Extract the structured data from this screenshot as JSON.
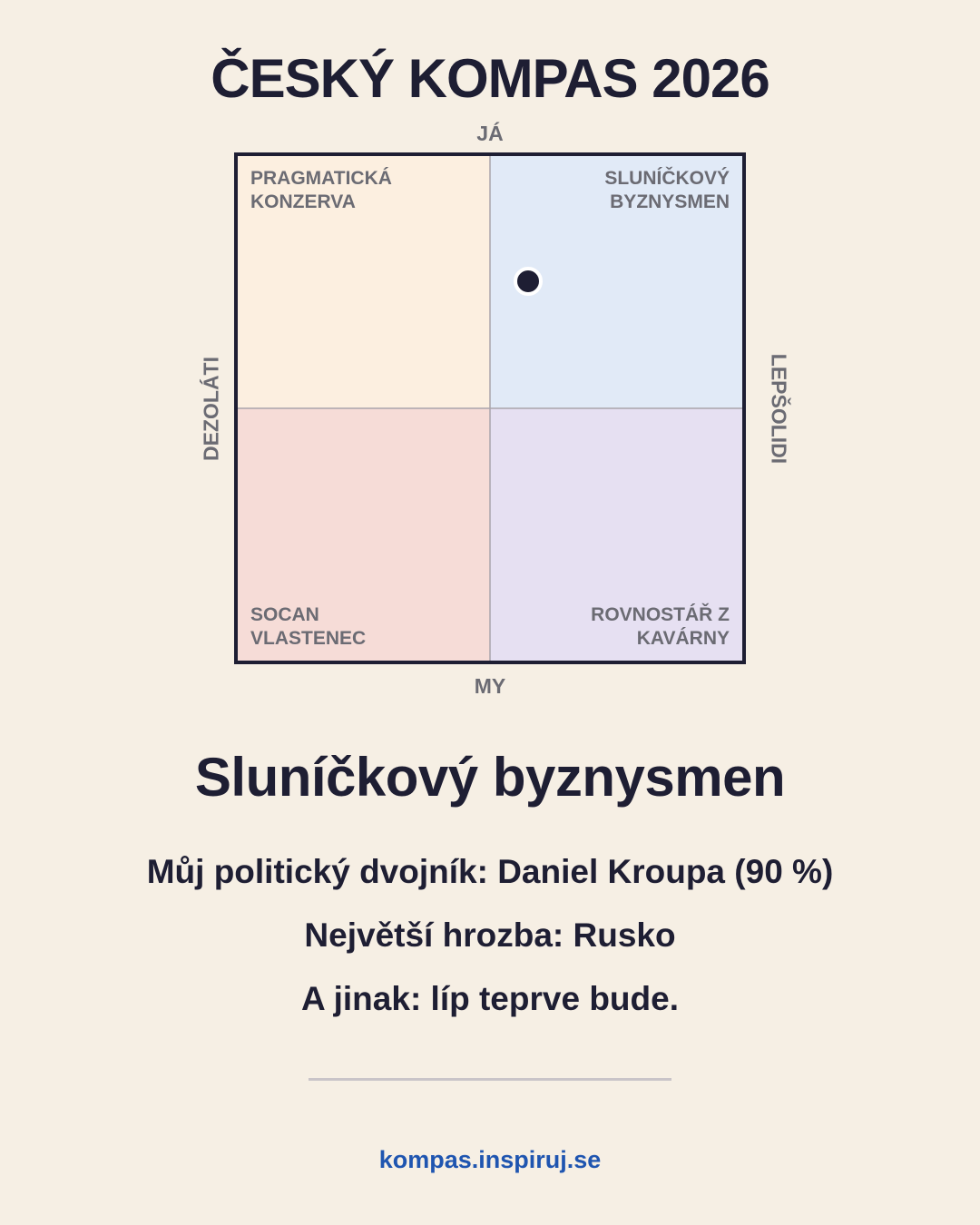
{
  "chart_data": {
    "type": "scatter",
    "title": "ČESKÝ KOMPAS 2026",
    "axis_labels": {
      "top": "JÁ",
      "bottom": "MY",
      "left": "DEZOLÁTI",
      "right": "LEPŠOLIDI"
    },
    "quadrants": [
      {
        "label": "PRAGMATICKÁ KONZERVA",
        "color": "#fcefe0"
      },
      {
        "label": "SLUNÍČKOVÝ BYZNYSMEN",
        "color": "#e1eaf7"
      },
      {
        "label": "SOCAN VLASTENEC",
        "color": "#f6dcd7"
      },
      {
        "label": "ROVNOSTÁŘ Z KAVÁRNY",
        "color": "#e6e0f2"
      }
    ],
    "x": [
      1.5
    ],
    "values": [
      5
    ],
    "color": "#1e1e33",
    "xlim": [
      -10,
      10
    ],
    "ylim": [
      -10,
      10
    ]
  },
  "result": {
    "name": "Sluníčkový byznysmen",
    "lines": [
      "Můj politický dvojník: Daniel Kroupa (90 %)",
      "Největší hrozba: Rusko",
      "A jinak: líp teprve bude."
    ]
  },
  "footer": {
    "link": "kompas.inspiruj.se"
  }
}
